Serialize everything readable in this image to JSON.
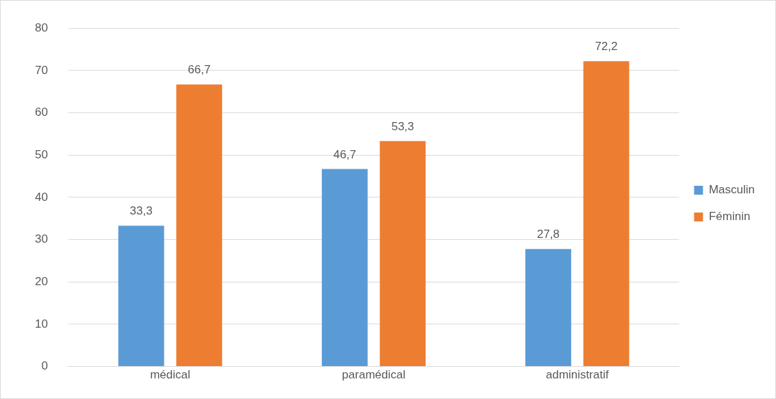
{
  "chart_data": {
    "type": "bar",
    "categories": [
      "médical",
      "paramédical",
      "administratif"
    ],
    "series": [
      {
        "name": "Masculin",
        "color": "#5b9bd5",
        "values": [
          33.3,
          46.7,
          27.8
        ],
        "value_labels": [
          "33,3",
          "46,7",
          "27,8"
        ]
      },
      {
        "name": "Féminin",
        "color": "#ed7d31",
        "values": [
          66.7,
          53.3,
          72.2
        ],
        "value_labels": [
          "66,7",
          "53,3",
          "72,2"
        ]
      }
    ],
    "ylim": [
      0,
      80
    ],
    "yticks": [
      0,
      10,
      20,
      30,
      40,
      50,
      60,
      70,
      80
    ],
    "grid": "y",
    "legend": "right"
  }
}
